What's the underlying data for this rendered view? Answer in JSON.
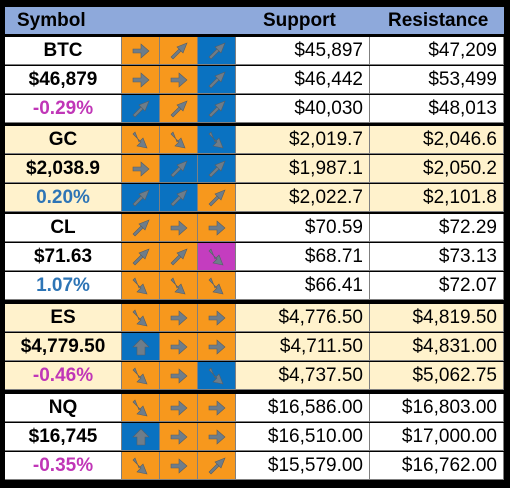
{
  "header": {
    "symbol": "Symbol",
    "support": "Support",
    "resistance": "Resistance"
  },
  "colors": {
    "orange": "#f7981d",
    "blue": "#0a72c1",
    "magenta": "#c43dbf",
    "arrow": "#6e7d8a",
    "neg": "#c036b7",
    "pos": "#2e75b6"
  },
  "blocks": [
    {
      "rows": [
        {
          "label": "BTC",
          "label_color": "#000000",
          "arrows": [
            [
              "orange",
              "right"
            ],
            [
              "orange",
              "up-right"
            ],
            [
              "blue",
              "up-right"
            ]
          ],
          "support": "$45,897",
          "resistance": "$47,209"
        },
        {
          "label": "$46,879",
          "label_color": "#000000",
          "arrows": [
            [
              "orange",
              "right"
            ],
            [
              "orange",
              "right"
            ],
            [
              "blue",
              "up-right"
            ]
          ],
          "support": "$46,442",
          "resistance": "$53,499"
        },
        {
          "label": "-0.29%",
          "label_color": "#c036b7",
          "arrows": [
            [
              "blue",
              "up-right"
            ],
            [
              "orange",
              "up-right"
            ],
            [
              "blue",
              "up-right"
            ]
          ],
          "support": "$40,030",
          "resistance": "$48,013"
        }
      ]
    },
    {
      "rows": [
        {
          "label": "GC",
          "label_color": "#000000",
          "arrows": [
            [
              "orange",
              "down-right"
            ],
            [
              "orange",
              "down-right"
            ],
            [
              "blue",
              "down-right"
            ]
          ],
          "support": "$2,019.7",
          "resistance": "$2,046.6"
        },
        {
          "label": "$2,038.9",
          "label_color": "#000000",
          "arrows": [
            [
              "orange",
              "right"
            ],
            [
              "blue",
              "up-right"
            ],
            [
              "blue",
              "up-right"
            ]
          ],
          "support": "$1,987.1",
          "resistance": "$2,050.2"
        },
        {
          "label": "0.20%",
          "label_color": "#2e75b6",
          "arrows": [
            [
              "blue",
              "up-right"
            ],
            [
              "blue",
              "up-right"
            ],
            [
              "orange",
              "up-right"
            ]
          ],
          "support": "$2,022.7",
          "resistance": "$2,101.8"
        }
      ]
    },
    {
      "rows": [
        {
          "label": "CL",
          "label_color": "#000000",
          "arrows": [
            [
              "orange",
              "up-right"
            ],
            [
              "orange",
              "right"
            ],
            [
              "orange",
              "right"
            ]
          ],
          "support": "$70.59",
          "resistance": "$72.29"
        },
        {
          "label": "$71.63",
          "label_color": "#000000",
          "arrows": [
            [
              "orange",
              "up-right"
            ],
            [
              "orange",
              "up-right"
            ],
            [
              "magenta",
              "down-right"
            ]
          ],
          "support": "$68.71",
          "resistance": "$73.13"
        },
        {
          "label": "1.07%",
          "label_color": "#2e75b6",
          "arrows": [
            [
              "orange",
              "down-right"
            ],
            [
              "orange",
              "down-right"
            ],
            [
              "orange",
              "down-right"
            ]
          ],
          "support": "$66.41",
          "resistance": "$72.07"
        }
      ]
    },
    {
      "rows": [
        {
          "label": "ES",
          "label_color": "#000000",
          "arrows": [
            [
              "orange",
              "down-right"
            ],
            [
              "orange",
              "right"
            ],
            [
              "orange",
              "right"
            ]
          ],
          "support": "$4,776.50",
          "resistance": "$4,819.50"
        },
        {
          "label": "$4,779.50",
          "label_color": "#000000",
          "arrows": [
            [
              "blue",
              "up"
            ],
            [
              "orange",
              "right"
            ],
            [
              "orange",
              "right"
            ]
          ],
          "support": "$4,711.50",
          "resistance": "$4,831.00"
        },
        {
          "label": "-0.46%",
          "label_color": "#c036b7",
          "arrows": [
            [
              "orange",
              "down-right"
            ],
            [
              "orange",
              "right"
            ],
            [
              "blue",
              "down-right"
            ]
          ],
          "support": "$4,737.50",
          "resistance": "$5,062.75"
        }
      ]
    },
    {
      "rows": [
        {
          "label": "NQ",
          "label_color": "#000000",
          "arrows": [
            [
              "orange",
              "down-right"
            ],
            [
              "orange",
              "right"
            ],
            [
              "orange",
              "right"
            ]
          ],
          "support": "$16,586.00",
          "resistance": "$16,803.00"
        },
        {
          "label": "$16,745",
          "label_color": "#000000",
          "arrows": [
            [
              "blue",
              "up"
            ],
            [
              "orange",
              "right"
            ],
            [
              "orange",
              "right"
            ]
          ],
          "support": "$16,510.00",
          "resistance": "$17,000.00"
        },
        {
          "label": "-0.35%",
          "label_color": "#c036b7",
          "arrows": [
            [
              "orange",
              "down-right"
            ],
            [
              "orange",
              "right"
            ],
            [
              "orange",
              "up-right"
            ]
          ],
          "support": "$15,579.00",
          "resistance": "$16,762.00"
        }
      ]
    }
  ]
}
